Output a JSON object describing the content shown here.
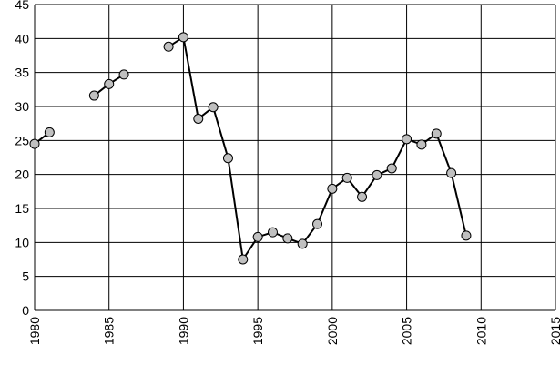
{
  "chart_data": {
    "type": "line",
    "x": [
      1980,
      1981,
      1982,
      1983,
      1984,
      1985,
      1986,
      1987,
      1988,
      1989,
      1990,
      1991,
      1992,
      1993,
      1994,
      1995,
      1996,
      1997,
      1998,
      1999,
      2000,
      2001,
      2002,
      2003,
      2004,
      2005,
      2006,
      2007,
      2008,
      2009
    ],
    "values": [
      24.5,
      26.2,
      null,
      null,
      31.6,
      33.3,
      34.7,
      null,
      null,
      38.8,
      40.2,
      28.2,
      29.9,
      22.4,
      7.5,
      10.8,
      11.5,
      10.6,
      9.8,
      12.7,
      17.9,
      19.5,
      16.7,
      19.9,
      20.9,
      25.2,
      24.4,
      26.0,
      20.2,
      11.0
    ],
    "color": "#000000",
    "marker_color": "#c0c0c0",
    "xlim": [
      1980,
      2015
    ],
    "xticks": [
      1980,
      1985,
      1990,
      1995,
      2000,
      2005,
      2010,
      2015
    ],
    "ylim": [
      0,
      45
    ],
    "yticks": [
      0,
      5,
      10,
      15,
      20,
      25,
      30,
      35,
      40,
      45
    ],
    "grid": true
  }
}
